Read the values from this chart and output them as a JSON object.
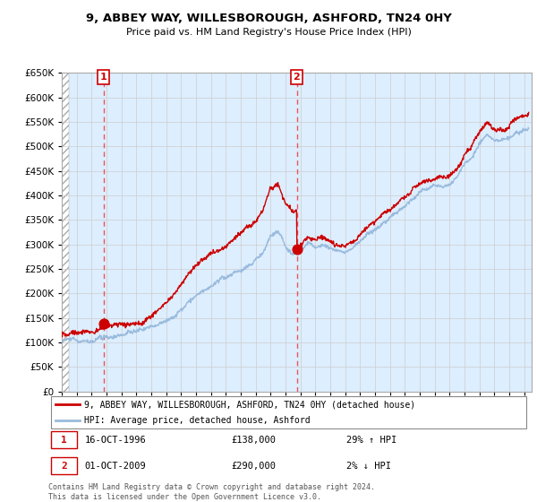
{
  "title1": "9, ABBEY WAY, WILLESBOROUGH, ASHFORD, TN24 0HY",
  "title2": "Price paid vs. HM Land Registry's House Price Index (HPI)",
  "ylim": [
    0,
    650000
  ],
  "yticks": [
    0,
    50000,
    100000,
    150000,
    200000,
    250000,
    300000,
    350000,
    400000,
    450000,
    500000,
    550000,
    600000,
    650000
  ],
  "xlim_start": 1994,
  "xlim_end": 2025.5,
  "sale1_date": 1996.79,
  "sale1_price": 138000,
  "sale2_date": 2009.75,
  "sale2_price": 290000,
  "legend_line1": "9, ABBEY WAY, WILLESBOROUGH, ASHFORD, TN24 0HY (detached house)",
  "legend_line2": "HPI: Average price, detached house, Ashford",
  "table_row1_num": "1",
  "table_row1_date": "16-OCT-1996",
  "table_row1_price": "£138,000",
  "table_row1_hpi": "29% ↑ HPI",
  "table_row2_num": "2",
  "table_row2_date": "01-OCT-2009",
  "table_row2_price": "£290,000",
  "table_row2_hpi": "2% ↓ HPI",
  "footer": "Contains HM Land Registry data © Crown copyright and database right 2024.\nThis data is licensed under the Open Government Licence v3.0.",
  "sale_color": "#cc0000",
  "hpi_color": "#99bbdd",
  "bg_fill_color": "#ddeeff",
  "vline_color": "#ee4444",
  "grid_color": "#cccccc"
}
